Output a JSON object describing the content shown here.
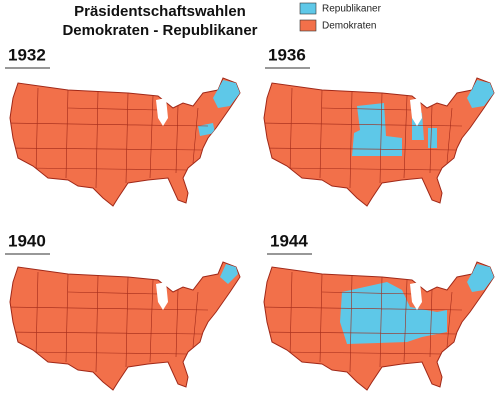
{
  "header": {
    "title_line1": "Präsidentschaftswahlen",
    "title_line2": "Demokraten - Republikaner"
  },
  "legend": [
    {
      "label": "Republikaner",
      "color": "#5ec8e8"
    },
    {
      "label": "Demokraten",
      "color": "#f2704a"
    }
  ],
  "maps": [
    {
      "year": "1932"
    },
    {
      "year": "1936"
    },
    {
      "year": "1940"
    },
    {
      "year": "1944"
    }
  ]
}
